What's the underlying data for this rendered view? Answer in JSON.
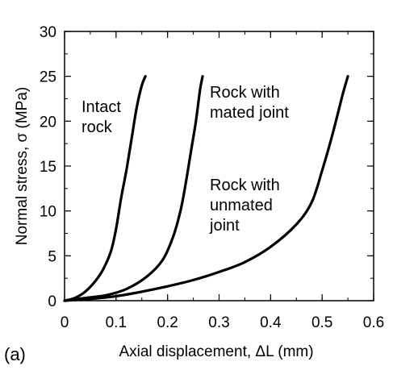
{
  "chart_data": {
    "type": "line",
    "panel_label": "(a)",
    "xlabel": "Axial displacement, ΔL (mm)",
    "ylabel": "Normal stress, σ (MPa)",
    "xlim": [
      0,
      0.6
    ],
    "ylim": [
      0,
      30
    ],
    "x_ticks": [
      0,
      0.1,
      0.2,
      0.3,
      0.4,
      0.5,
      0.6
    ],
    "x_tick_labels": [
      "0",
      "0.1",
      "0.2",
      "0.3",
      "0.4",
      "0.5",
      "0.6"
    ],
    "y_ticks": [
      0,
      5,
      10,
      15,
      20,
      25,
      30
    ],
    "y_tick_labels": [
      "0",
      "5",
      "10",
      "15",
      "20",
      "25",
      "30"
    ],
    "grid": false,
    "series": [
      {
        "label_lines": [
          "Intact",
          "rock"
        ],
        "points": [
          [
            0,
            0
          ],
          [
            0.02,
            0.3
          ],
          [
            0.04,
            1.0
          ],
          [
            0.06,
            2.2
          ],
          [
            0.075,
            3.5
          ],
          [
            0.09,
            5.5
          ],
          [
            0.1,
            8.0
          ],
          [
            0.11,
            11.5
          ],
          [
            0.12,
            14.5
          ],
          [
            0.13,
            18.0
          ],
          [
            0.14,
            21.5
          ],
          [
            0.15,
            24.0
          ],
          [
            0.157,
            25.0
          ]
        ]
      },
      {
        "label_lines": [
          "Rock with",
          "mated joint"
        ],
        "points": [
          [
            0,
            0
          ],
          [
            0.04,
            0.3
          ],
          [
            0.08,
            0.6
          ],
          [
            0.12,
            1.3
          ],
          [
            0.16,
            2.7
          ],
          [
            0.19,
            4.5
          ],
          [
            0.21,
            7.0
          ],
          [
            0.225,
            10.0
          ],
          [
            0.235,
            13.0
          ],
          [
            0.245,
            16.5
          ],
          [
            0.255,
            20.0
          ],
          [
            0.263,
            23.5
          ],
          [
            0.268,
            25.0
          ]
        ]
      },
      {
        "label_lines": [
          "Rock with",
          "unmated",
          "joint"
        ],
        "points": [
          [
            0,
            0
          ],
          [
            0.05,
            0.2
          ],
          [
            0.1,
            0.5
          ],
          [
            0.15,
            1.0
          ],
          [
            0.2,
            1.6
          ],
          [
            0.25,
            2.3
          ],
          [
            0.3,
            3.2
          ],
          [
            0.35,
            4.3
          ],
          [
            0.4,
            6.0
          ],
          [
            0.45,
            8.5
          ],
          [
            0.48,
            11.0
          ],
          [
            0.5,
            14.5
          ],
          [
            0.52,
            18.5
          ],
          [
            0.54,
            23.0
          ],
          [
            0.55,
            25.0
          ]
        ]
      }
    ]
  }
}
